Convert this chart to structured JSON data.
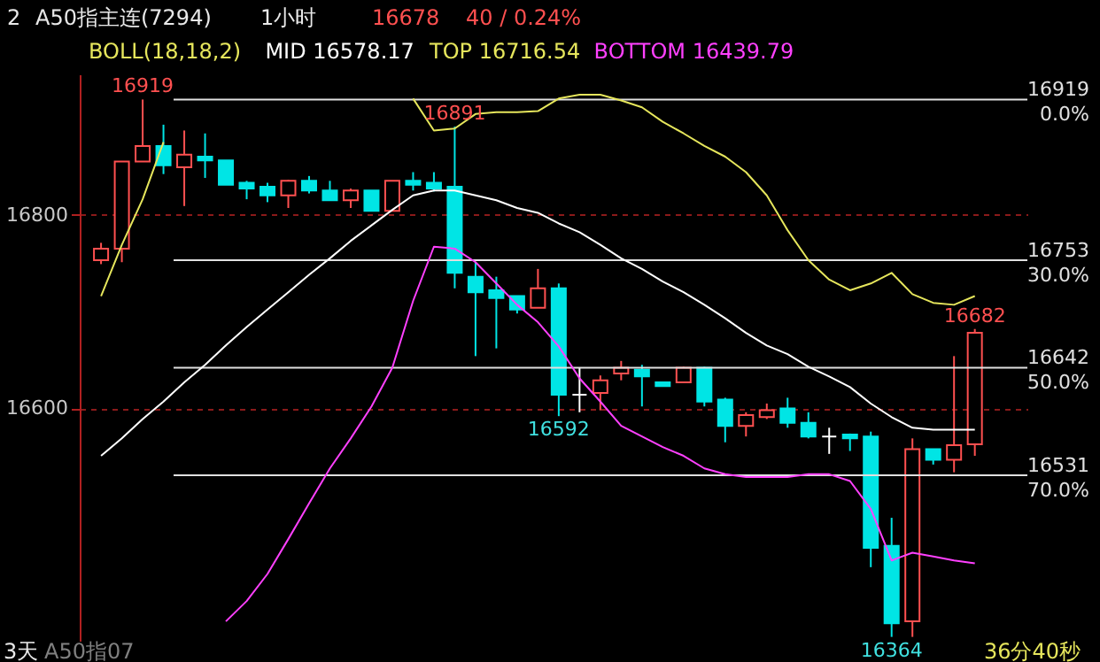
{
  "chart_data": {
    "type": "candlestick",
    "title": "A50指主连(7294)",
    "subtitle": "1小时",
    "legend_title": "BOLL(18,18,2)",
    "categories": [
      null,
      null,
      null,
      null,
      null,
      null,
      null,
      null,
      null,
      null,
      null,
      null,
      null,
      null,
      null,
      null,
      null,
      null,
      null,
      null,
      null,
      null,
      null,
      null,
      null,
      null,
      null,
      null,
      null,
      null,
      null,
      null,
      null,
      null,
      null,
      null,
      null,
      null,
      null,
      null,
      null,
      null,
      null
    ],
    "ohlc": [
      [
        16753,
        16771,
        16749,
        16765
      ],
      [
        16765,
        16855,
        16751,
        16855
      ],
      [
        16855,
        16919,
        16855,
        16871
      ],
      [
        16871,
        16893,
        16842,
        16851
      ],
      [
        16849,
        16887,
        16809,
        16862
      ],
      [
        16860,
        16884,
        16838,
        16856
      ],
      [
        16856,
        16856,
        16831,
        16831
      ],
      [
        16833,
        16835,
        16816,
        16827
      ],
      [
        16829,
        16833,
        16813,
        16820
      ],
      [
        16820,
        16836,
        16807,
        16835
      ],
      [
        16835,
        16840,
        16822,
        16825
      ],
      [
        16825,
        16835,
        16815,
        16815
      ],
      [
        16815,
        16827,
        16807,
        16825
      ],
      [
        16825,
        16825,
        16804,
        16804
      ],
      [
        16804,
        16835,
        16804,
        16835
      ],
      [
        16835,
        16844,
        16825,
        16831
      ],
      [
        16833,
        16844,
        16824,
        16827
      ],
      [
        16829,
        16891,
        16724,
        16740
      ],
      [
        16736,
        16751,
        16654,
        16720
      ],
      [
        16722,
        16736,
        16662,
        16714
      ],
      [
        16716,
        16716,
        16698,
        16702
      ],
      [
        16704,
        16744,
        16704,
        16724
      ],
      [
        16724,
        16729,
        16592,
        16614
      ],
      [
        16614,
        16642,
        16596,
        16614
      ],
      [
        16616,
        16634,
        16598,
        16629
      ],
      [
        16636,
        16649,
        16629,
        16642
      ],
      [
        16640,
        16645,
        16602,
        16633
      ],
      [
        16627,
        16627,
        16623,
        16623
      ],
      [
        16627,
        16643,
        16627,
        16642
      ],
      [
        16642,
        16643,
        16602,
        16607
      ],
      [
        16609,
        16611,
        16565,
        16582
      ],
      [
        16582,
        16596,
        16571,
        16593
      ],
      [
        16591,
        16605,
        16589,
        16598
      ],
      [
        16600,
        16611,
        16580,
        16585
      ],
      [
        16585,
        16596,
        16569,
        16571
      ],
      [
        16571,
        16580,
        16553,
        16571
      ],
      [
        16573,
        16574,
        16556,
        16569
      ],
      [
        16571,
        16576,
        16436,
        16456
      ],
      [
        16458,
        16487,
        16364,
        16378
      ],
      [
        16380,
        16569,
        16364,
        16558
      ],
      [
        16558,
        16558,
        16542,
        16547
      ],
      [
        16547,
        16654,
        16534,
        16562
      ],
      [
        16563,
        16682,
        16551,
        16678
      ]
    ],
    "colors": [
      "#ff5050",
      "#ff5050",
      "#ff5050",
      "#00e5e5",
      "#ff5050",
      "#00e5e5",
      "#00e5e5",
      "#00e5e5",
      "#00e5e5",
      "#ff5050",
      "#00e5e5",
      "#00e5e5",
      "#ff5050",
      "#00e5e5",
      "#ff5050",
      "#00e5e5",
      "#00e5e5",
      "#00e5e5",
      "#00e5e5",
      "#00e5e5",
      "#00e5e5",
      "#ff5050",
      "#00e5e5",
      "#ffffff",
      "#ff5050",
      "#ff5050",
      "#00e5e5",
      "#00e5e5",
      "#ff5050",
      "#00e5e5",
      "#00e5e5",
      "#ff5050",
      "#ff5050",
      "#00e5e5",
      "#00e5e5",
      "#ffffff",
      "#00e5e5",
      "#00e5e5",
      "#00e5e5",
      "#ff5050",
      "#00e5e5",
      "#ff5050",
      "#ff5050"
    ],
    "series": [
      {
        "name": "MID 16578.17",
        "type": "line",
        "color": "#ffffff",
        "values": [
          16551,
          16569,
          16589,
          16607,
          16627,
          16645,
          16665,
          16684,
          16702,
          16720,
          16738,
          16755,
          16773,
          16789,
          16805,
          16820,
          16825,
          16825,
          16820,
          16815,
          16807,
          16802,
          16791,
          16782,
          16769,
          16755,
          16744,
          16731,
          16720,
          16707,
          16693,
          16678,
          16665,
          16656,
          16643,
          16633,
          16622,
          16605,
          16591,
          16580,
          16578,
          16578,
          16578
        ]
      },
      {
        "name": "TOP 16716.54",
        "type": "line",
        "color": "#e6e65c",
        "values": [
          16716,
          16769,
          16816,
          16875,
          null,
          null,
          null,
          null,
          null,
          null,
          null,
          null,
          null,
          null,
          null,
          16920,
          16887,
          16889,
          16904,
          16906,
          16906,
          16907,
          16920,
          16924,
          16924,
          16918,
          16911,
          16896,
          16884,
          16871,
          16860,
          16844,
          16820,
          16784,
          16753,
          16733,
          16722,
          16729,
          16740,
          16718,
          16709,
          16707,
          16716
        ]
      },
      {
        "name": "BOTTOM 16439.79",
        "type": "line",
        "color": "#ff40ff",
        "values": [
          null,
          null,
          null,
          null,
          null,
          null,
          16380,
          16401,
          16429,
          16465,
          16502,
          16538,
          16569,
          16602,
          16642,
          16711,
          16767,
          16765,
          16751,
          16729,
          16707,
          16689,
          16664,
          16631,
          16607,
          16582,
          16571,
          16560,
          16551,
          16538,
          16532,
          16529,
          16529,
          16529,
          16532,
          16532,
          16525,
          16496,
          16443,
          16451,
          16447,
          16443,
          16440
        ]
      }
    ],
    "ylim": [
      16360,
      16945
    ],
    "yticks": [
      16600,
      16800
    ],
    "grid": "y",
    "legend": "top",
    "ref_lines": [
      {
        "axis": "y",
        "value": 16919,
        "label": "16919 0.0%",
        "color": "#e0e0e0"
      },
      {
        "axis": "y",
        "value": 16753,
        "label": "16753 30.0%",
        "color": "#e0e0e0"
      },
      {
        "axis": "y",
        "value": 16642,
        "label": "16642 50.0%",
        "color": "#e0e0e0"
      },
      {
        "axis": "y",
        "value": 16531,
        "label": "16531 70.0%",
        "color": "#e0e0e0"
      }
    ],
    "annotations": [
      "2",
      "16678",
      "40 / 0.24%",
      "3天",
      "A50指07",
      "36分40秒",
      "16919",
      "16891",
      "16592",
      "16682",
      "16364"
    ]
  }
}
